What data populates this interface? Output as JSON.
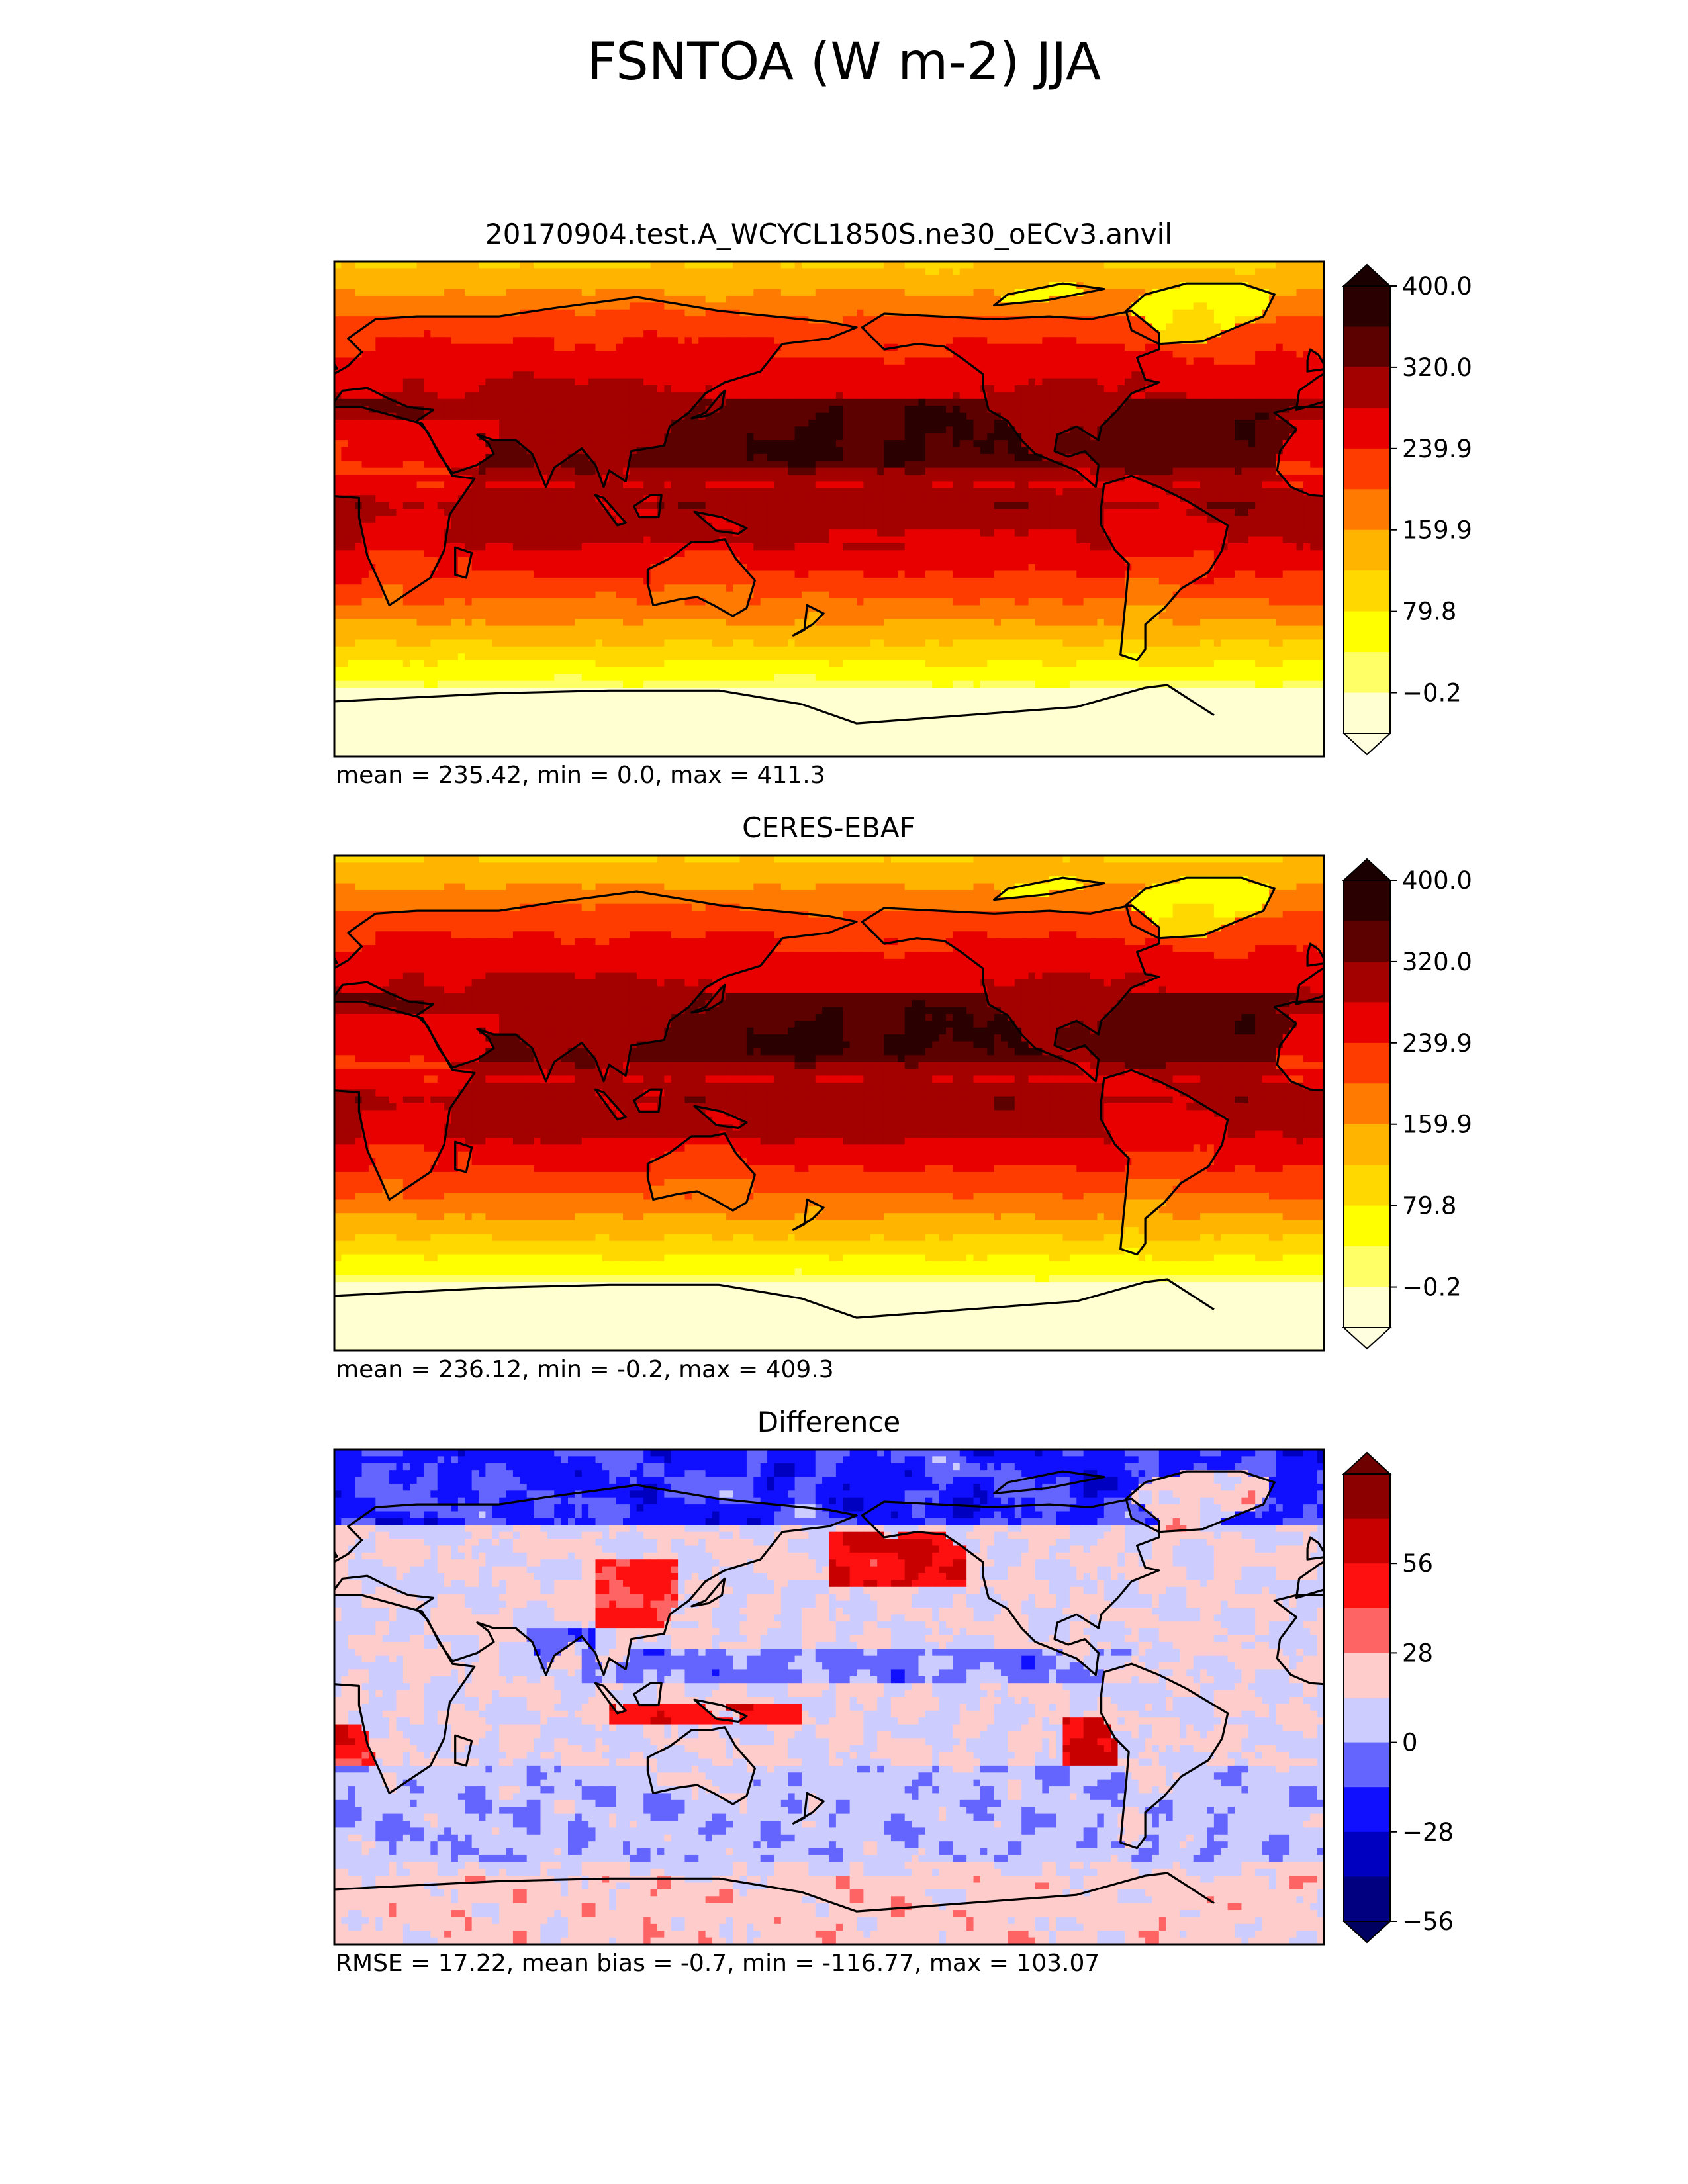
{
  "figure": {
    "title": "FSNTOA (W m-2) JJA"
  },
  "chart_data": [
    {
      "type": "heatmap",
      "title": "20170904.test.A_WCYCL1850S.ne30_oECv3.anvil",
      "stats": "mean = 235.42, min = 0.0, max = 411.3",
      "colorbar": {
        "ticks": [
          "400.0",
          "320.0",
          "239.9",
          "159.9",
          "79.8",
          "−0.2"
        ],
        "colors": [
          "#2b0000",
          "#5c0000",
          "#a30000",
          "#e80000",
          "#ff3c00",
          "#ff7a00",
          "#ffb400",
          "#ffd800",
          "#ffff00",
          "#ffff66",
          "#ffffd2"
        ],
        "extend_top": "#1a0000",
        "extend_bottom": "#ffffe0"
      },
      "field": "model"
    },
    {
      "type": "heatmap",
      "title": "CERES-EBAF",
      "stats": "mean = 236.12, min = -0.2, max = 409.3",
      "colorbar": {
        "ticks": [
          "400.0",
          "320.0",
          "239.9",
          "159.9",
          "79.8",
          "−0.2"
        ],
        "colors": [
          "#2b0000",
          "#5c0000",
          "#a30000",
          "#e80000",
          "#ff3c00",
          "#ff7a00",
          "#ffb400",
          "#ffd800",
          "#ffff00",
          "#ffff66",
          "#ffffd2"
        ],
        "extend_top": "#1a0000",
        "extend_bottom": "#ffffe0"
      },
      "field": "obs"
    },
    {
      "type": "heatmap",
      "title": "Difference",
      "stats": "RMSE = 17.22, mean bias = -0.7, min = -116.77, max = 103.07",
      "colorbar": {
        "ticks": [
          "56",
          "28",
          "0",
          "−28",
          "−56"
        ],
        "colors": [
          "#8c0000",
          "#c80000",
          "#ff1010",
          "#ff6464",
          "#ffcccc",
          "#ccccff",
          "#6464ff",
          "#1010ff",
          "#0000c0",
          "#000080"
        ],
        "extend_top": "#6e0000",
        "extend_bottom": "#000060"
      },
      "field": "diff"
    }
  ],
  "map_colors": {
    "coastline": "#000000",
    "frame": "#000000"
  }
}
